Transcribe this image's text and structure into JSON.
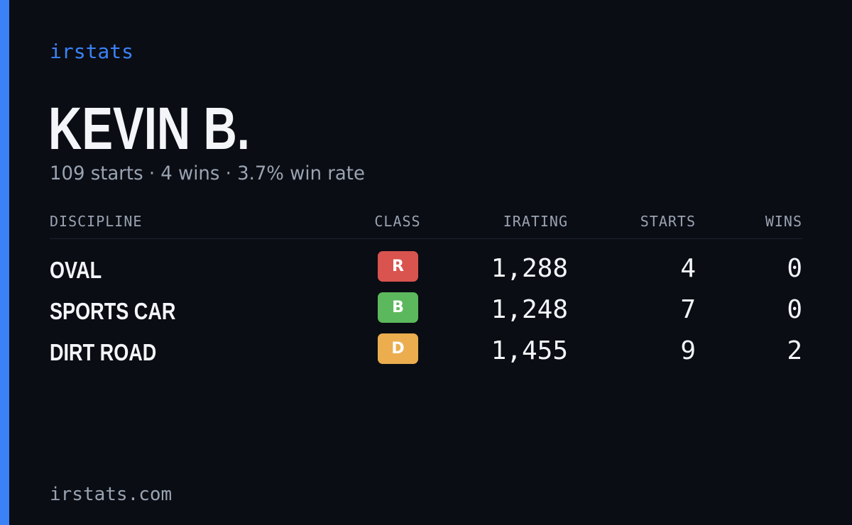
{
  "brand": "irstats",
  "driver": {
    "name": "KEVIN B.",
    "summary": "109 starts · 4 wins · 3.7% win rate"
  },
  "table": {
    "headers": {
      "discipline": "DISCIPLINE",
      "class": "CLASS",
      "irating": "IRATING",
      "starts": "STARTS",
      "wins": "WINS"
    },
    "rows": [
      {
        "discipline": "OVAL",
        "class": "R",
        "class_color": "#d9534f",
        "irating": "1,288",
        "starts": "4",
        "wins": "0"
      },
      {
        "discipline": "SPORTS CAR",
        "class": "B",
        "class_color": "#5cb85c",
        "irating": "1,248",
        "starts": "7",
        "wins": "0"
      },
      {
        "discipline": "DIRT ROAD",
        "class": "D",
        "class_color": "#ecad4f",
        "irating": "1,455",
        "starts": "9",
        "wins": "2"
      }
    ]
  },
  "footer": {
    "url": "irstats.com"
  },
  "colors": {
    "background": "#0a0d14",
    "accent": "#3b82f6",
    "text": "#f3f5f9",
    "muted": "#9aa3b1"
  }
}
